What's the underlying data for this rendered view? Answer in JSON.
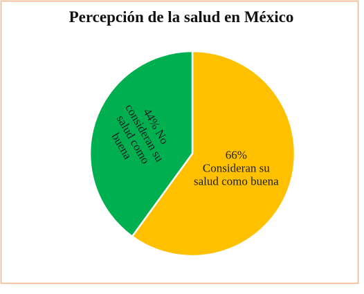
{
  "chart_data": {
    "type": "pie",
    "title": "Percepción de la salud en México",
    "categories": [
      "Consideran su salud como buena",
      "No consideran su salud como buena"
    ],
    "values": [
      66,
      44
    ],
    "value_labels": [
      "66%",
      "44%"
    ],
    "colors": [
      "#FFC000",
      "#00B050"
    ]
  }
}
